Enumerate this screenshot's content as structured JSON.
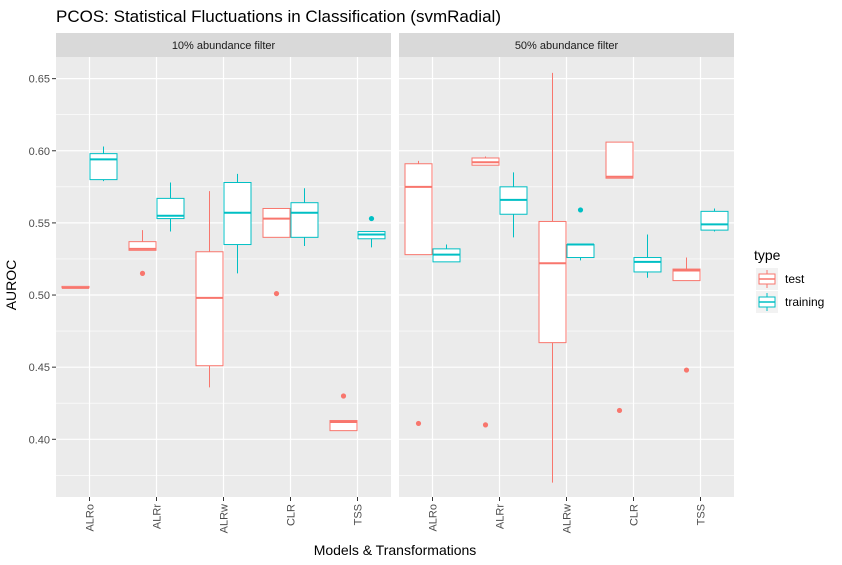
{
  "chart_data": {
    "type": "boxplot",
    "title": "PCOS: Statistical Fluctuations in Classification (svmRadial)",
    "xlabel": "Models & Transformations",
    "ylabel": "AUROC",
    "ylim": [
      0.36,
      0.665
    ],
    "yticks": [
      0.4,
      0.45,
      0.5,
      0.55,
      0.6,
      0.65
    ],
    "ytick_labels": [
      "0.40",
      "0.45",
      "0.50",
      "0.55",
      "0.60",
      "0.65"
    ],
    "categories": [
      "ALRo",
      "ALRr",
      "ALRw",
      "CLR",
      "TSS"
    ],
    "grid": true,
    "legend": {
      "title": "type",
      "placement": "right",
      "entries": [
        {
          "name": "test",
          "color": "#F8766D"
        },
        {
          "name": "training",
          "color": "#00BFC4"
        }
      ]
    },
    "colors": {
      "test": "#F8766D",
      "training": "#00BFC4",
      "panel_bg": "#EBEBEB",
      "strip_bg": "#D9D9D9"
    },
    "panels": [
      {
        "label": "10% abundance filter",
        "boxes": [
          {
            "category": "ALRo",
            "type": "test",
            "min": 0.505,
            "q1": 0.505,
            "median": 0.505,
            "q3": 0.506,
            "max": 0.506,
            "outliers": []
          },
          {
            "category": "ALRo",
            "type": "training",
            "min": 0.579,
            "q1": 0.58,
            "median": 0.594,
            "q3": 0.598,
            "max": 0.603,
            "outliers": []
          },
          {
            "category": "ALRr",
            "type": "test",
            "min": 0.531,
            "q1": 0.531,
            "median": 0.532,
            "q3": 0.537,
            "max": 0.545,
            "outliers": [
              0.515
            ]
          },
          {
            "category": "ALRr",
            "type": "training",
            "min": 0.544,
            "q1": 0.553,
            "median": 0.555,
            "q3": 0.567,
            "max": 0.578,
            "outliers": []
          },
          {
            "category": "ALRw",
            "type": "test",
            "min": 0.436,
            "q1": 0.451,
            "median": 0.498,
            "q3": 0.53,
            "max": 0.572,
            "outliers": []
          },
          {
            "category": "ALRw",
            "type": "training",
            "min": 0.515,
            "q1": 0.535,
            "median": 0.557,
            "q3": 0.578,
            "max": 0.584,
            "outliers": []
          },
          {
            "category": "CLR",
            "type": "test",
            "min": 0.54,
            "q1": 0.54,
            "median": 0.553,
            "q3": 0.56,
            "max": 0.56,
            "outliers": [
              0.501
            ]
          },
          {
            "category": "CLR",
            "type": "training",
            "min": 0.534,
            "q1": 0.54,
            "median": 0.557,
            "q3": 0.564,
            "max": 0.574,
            "outliers": []
          },
          {
            "category": "TSS",
            "type": "test",
            "min": 0.406,
            "q1": 0.406,
            "median": 0.412,
            "q3": 0.413,
            "max": 0.413,
            "outliers": [
              0.43
            ]
          },
          {
            "category": "TSS",
            "type": "training",
            "min": 0.533,
            "q1": 0.539,
            "median": 0.542,
            "q3": 0.544,
            "max": 0.544,
            "outliers": [
              0.553
            ]
          }
        ]
      },
      {
        "label": "50% abundance filter",
        "boxes": [
          {
            "category": "ALRo",
            "type": "test",
            "min": 0.528,
            "q1": 0.528,
            "median": 0.575,
            "q3": 0.591,
            "max": 0.593,
            "outliers": [
              0.411
            ]
          },
          {
            "category": "ALRo",
            "type": "training",
            "min": 0.523,
            "q1": 0.523,
            "median": 0.528,
            "q3": 0.532,
            "max": 0.535,
            "outliers": []
          },
          {
            "category": "ALRr",
            "type": "test",
            "min": 0.59,
            "q1": 0.59,
            "median": 0.592,
            "q3": 0.595,
            "max": 0.596,
            "outliers": [
              0.41
            ]
          },
          {
            "category": "ALRr",
            "type": "training",
            "min": 0.54,
            "q1": 0.556,
            "median": 0.566,
            "q3": 0.575,
            "max": 0.585,
            "outliers": []
          },
          {
            "category": "ALRw",
            "type": "test",
            "min": 0.37,
            "q1": 0.467,
            "median": 0.522,
            "q3": 0.551,
            "max": 0.654,
            "outliers": []
          },
          {
            "category": "ALRw",
            "type": "training",
            "min": 0.524,
            "q1": 0.526,
            "median": 0.535,
            "q3": 0.535,
            "max": 0.535,
            "outliers": [
              0.559
            ]
          },
          {
            "category": "CLR",
            "type": "test",
            "min": 0.581,
            "q1": 0.581,
            "median": 0.582,
            "q3": 0.606,
            "max": 0.606,
            "outliers": [
              0.42
            ]
          },
          {
            "category": "CLR",
            "type": "training",
            "min": 0.512,
            "q1": 0.516,
            "median": 0.523,
            "q3": 0.526,
            "max": 0.542,
            "outliers": []
          },
          {
            "category": "TSS",
            "type": "test",
            "min": 0.51,
            "q1": 0.51,
            "median": 0.517,
            "q3": 0.518,
            "max": 0.526,
            "outliers": [
              0.448
            ]
          },
          {
            "category": "TSS",
            "type": "training",
            "min": 0.544,
            "q1": 0.545,
            "median": 0.549,
            "q3": 0.558,
            "max": 0.56,
            "outliers": []
          }
        ]
      }
    ]
  }
}
